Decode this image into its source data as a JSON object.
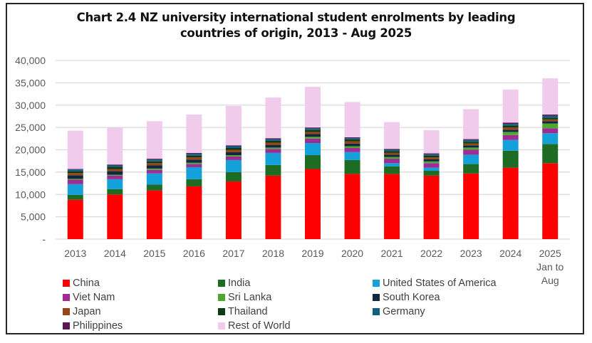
{
  "chart_data": {
    "type": "bar",
    "stacked": true,
    "title_lines": [
      "Chart 2.4   NZ university international student enrolments by leading",
      "countries of origin, 2013 - Aug 2025"
    ],
    "xlabel": "",
    "ylabel": "",
    "ylim": [
      0,
      40000
    ],
    "yticks": [
      0,
      5000,
      10000,
      15000,
      20000,
      25000,
      30000,
      35000,
      40000
    ],
    "ytick_labels": [
      "-",
      "5,000",
      "10,000",
      "15,000",
      "20,000",
      "25,000",
      "30,000",
      "35,000",
      "40,000"
    ],
    "grid": true,
    "legend_position": "bottom",
    "categories": [
      "2013",
      "2014",
      "2015",
      "2016",
      "2017",
      "2018",
      "2019",
      "2020",
      "2021",
      "2022",
      "2023",
      "2024",
      "2025"
    ],
    "category_label_lines": [
      [
        "2013"
      ],
      [
        "2014"
      ],
      [
        "2015"
      ],
      [
        "2016"
      ],
      [
        "2017"
      ],
      [
        "2018"
      ],
      [
        "2019"
      ],
      [
        "2020"
      ],
      [
        "2021"
      ],
      [
        "2022"
      ],
      [
        "2023"
      ],
      [
        "2024"
      ],
      [
        "2025",
        "Jan to",
        "Aug"
      ]
    ],
    "series": [
      {
        "name": "China",
        "color": "#FF0000",
        "values": [
          8800,
          10000,
          10900,
          11800,
          12900,
          14200,
          15700,
          14600,
          14600,
          14200,
          14700,
          16000,
          17000
        ]
      },
      {
        "name": "India",
        "color": "#1E6B24",
        "values": [
          1100,
          1200,
          1300,
          1600,
          2100,
          2400,
          3100,
          3100,
          1700,
          1100,
          2100,
          3800,
          4300
        ]
      },
      {
        "name": "United States of America",
        "color": "#14A0D8",
        "values": [
          2400,
          2200,
          2500,
          2700,
          2700,
          2700,
          2700,
          1800,
          700,
          700,
          2100,
          2400,
          2400
        ]
      },
      {
        "name": "Viet Nam",
        "color": "#9E2B96",
        "values": [
          1000,
          800,
          800,
          700,
          800,
          900,
          1000,
          900,
          1000,
          1000,
          1100,
          1100,
          1100
        ]
      },
      {
        "name": "Sri Lanka",
        "color": "#4EA72E",
        "values": [
          200,
          200,
          300,
          300,
          300,
          300,
          400,
          400,
          400,
          400,
          500,
          700,
          1100
        ]
      },
      {
        "name": "South Korea",
        "color": "#0E2841",
        "values": [
          800,
          800,
          700,
          700,
          700,
          600,
          600,
          600,
          500,
          500,
          500,
          500,
          500
        ]
      },
      {
        "name": "Japan",
        "color": "#994414",
        "values": [
          500,
          500,
          500,
          500,
          500,
          500,
          500,
          500,
          400,
          400,
          400,
          500,
          400
        ]
      },
      {
        "name": "Thailand",
        "color": "#0D3A15",
        "values": [
          400,
          400,
          400,
          400,
          400,
          400,
          400,
          400,
          400,
          400,
          400,
          400,
          400
        ]
      },
      {
        "name": "Germany",
        "color": "#10607F",
        "values": [
          400,
          400,
          400,
          400,
          400,
          400,
          400,
          300,
          300,
          300,
          400,
          400,
          400
        ]
      },
      {
        "name": "Philippines",
        "color": "#5B1856",
        "values": [
          100,
          200,
          200,
          200,
          200,
          200,
          200,
          200,
          200,
          200,
          200,
          300,
          300
        ]
      },
      {
        "name": "Rest of World",
        "color": "#F1CBEC",
        "values": [
          8600,
          8300,
          8400,
          8600,
          8800,
          9100,
          9100,
          7900,
          6000,
          5200,
          6700,
          7400,
          8100
        ]
      }
    ]
  }
}
